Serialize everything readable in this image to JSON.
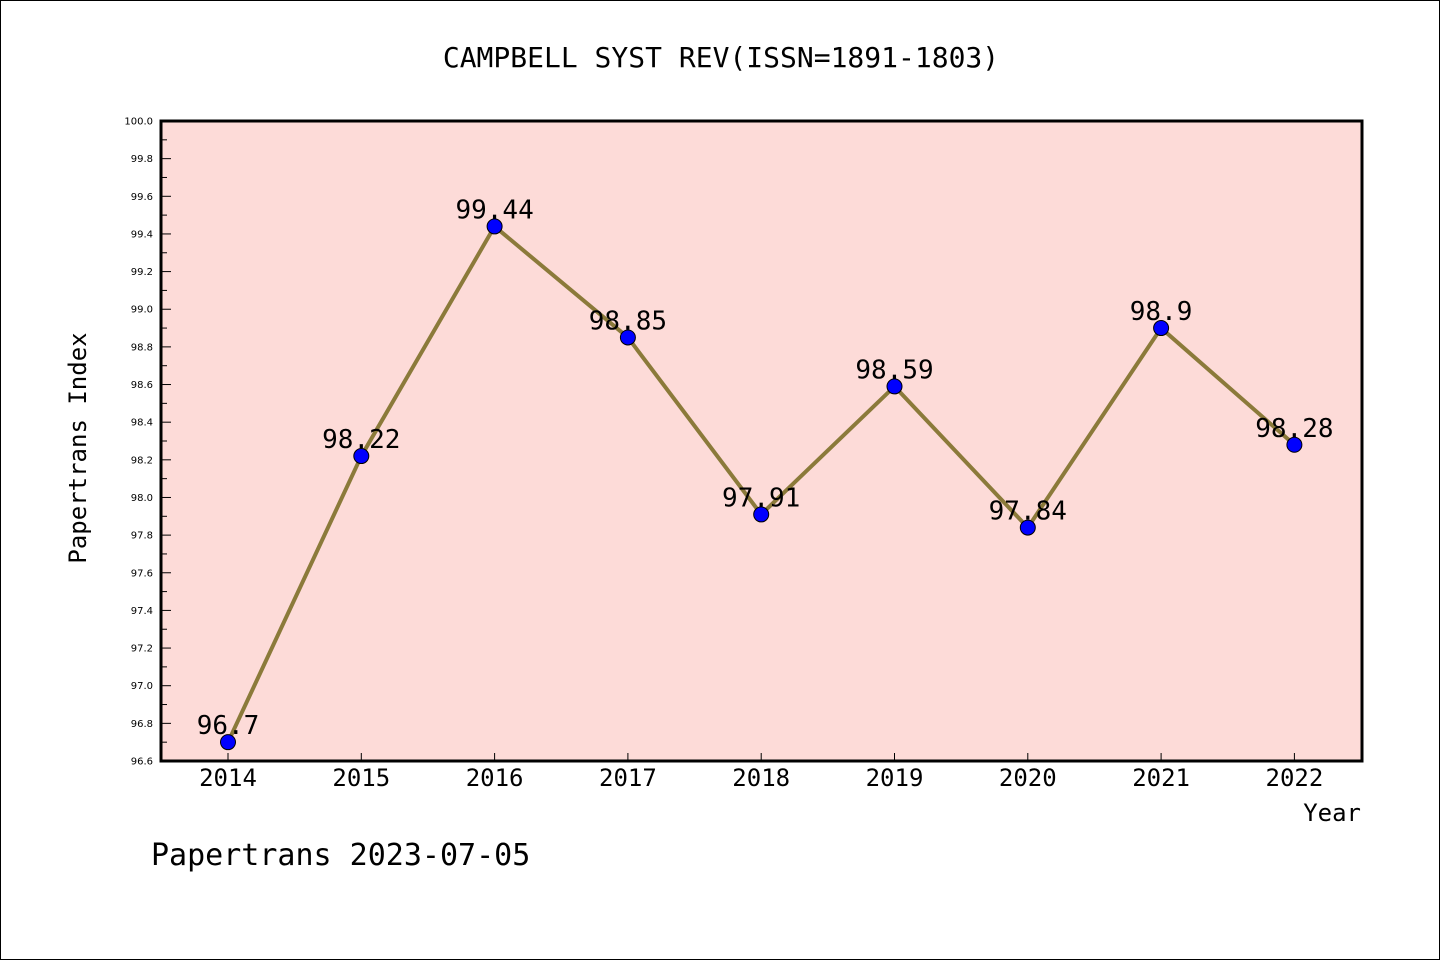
{
  "chart_data": {
    "type": "line",
    "title": "CAMPBELL SYST REV(ISSN=1891-1803)",
    "xlabel": "Year",
    "ylabel": "Papertrans Index",
    "categories": [
      "2014",
      "2015",
      "2016",
      "2017",
      "2018",
      "2019",
      "2020",
      "2021",
      "2022"
    ],
    "series": [
      {
        "values": [
          96.7,
          98.22,
          99.44,
          98.85,
          97.91,
          98.59,
          97.84,
          98.9,
          98.28
        ],
        "labels": [
          "96.7",
          "98.22",
          "99.44",
          "98.85",
          "97.91",
          "98.59",
          "97.84",
          "98.9",
          "98.28"
        ]
      }
    ],
    "ylim": [
      96.6,
      100.0
    ],
    "yticks": [
      "96.6",
      "96.8",
      "97.0",
      "97.2",
      "97.4",
      "97.6",
      "97.8",
      "98.0",
      "98.2",
      "98.4",
      "98.6",
      "98.8",
      "99.0",
      "99.2",
      "99.4",
      "99.6",
      "99.8",
      "100.0"
    ],
    "grid": false,
    "plot_background": "#fddbd8",
    "line_color": "#8b7a3a",
    "marker_color": "#0000ff"
  },
  "footer": {
    "text": "Papertrans 2023-07-05"
  }
}
